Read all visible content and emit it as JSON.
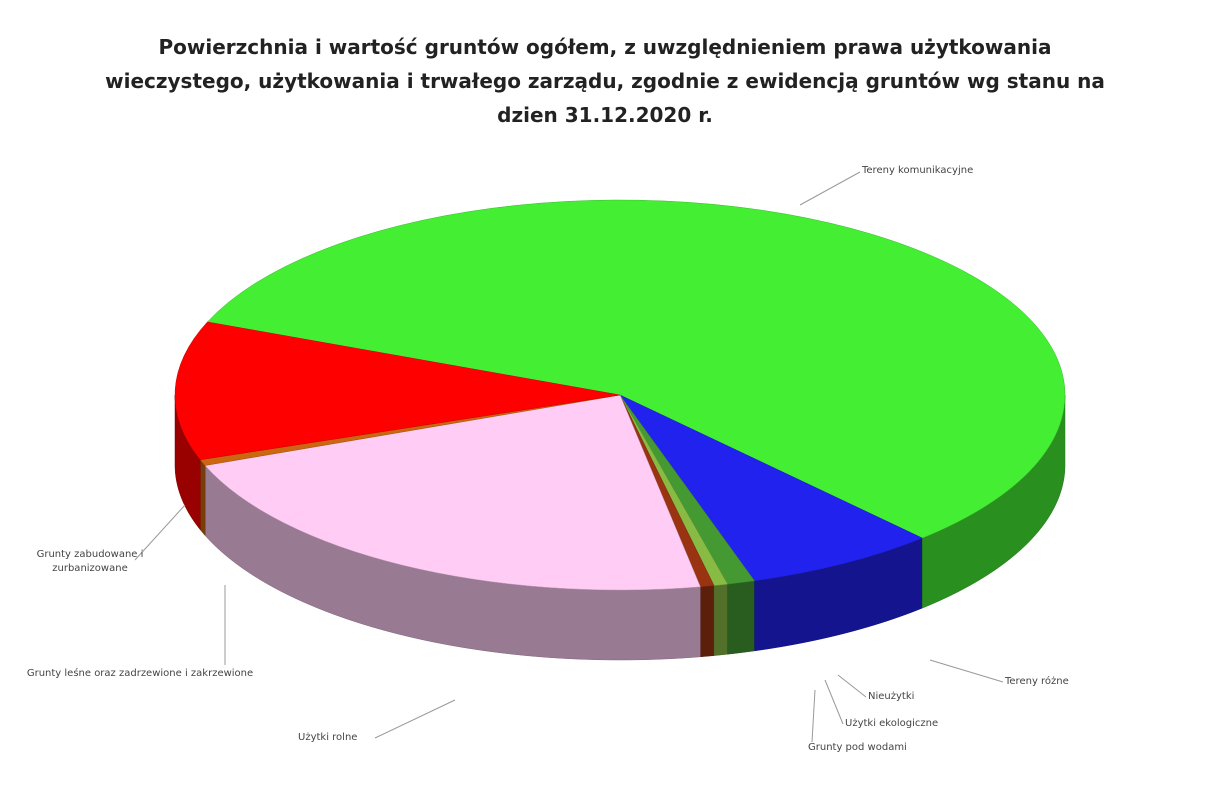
{
  "chart_data": {
    "type": "pie3d",
    "title": "Powierzchnia i wartość gruntów ogółem, z uwzględnieniem prawa użytkowania wieczystego, użytkowania i trwałego zarządu, zgodnie z ewidencją gruntów wg stanu na dzien 31.12.2020 r.",
    "categories": [
      "Tereny komunikacyjne",
      "Tereny różne",
      "Nieużytki",
      "Użytki ekologiczne",
      "Grunty pod wodami",
      "Użytki rolne",
      "Grunty leśne oraz zadrzewione i zakrzewione",
      "Grunty zabudowane i zurbanizowane"
    ],
    "values": [
      57,
      7,
      1,
      0.5,
      0.5,
      22,
      0.5,
      11.5
    ],
    "colors": [
      "#44ee33",
      "#2222ee",
      "#449933",
      "#88bb44",
      "#993311",
      "#ffccf5",
      "#cc6611",
      "#ff0000"
    ]
  }
}
